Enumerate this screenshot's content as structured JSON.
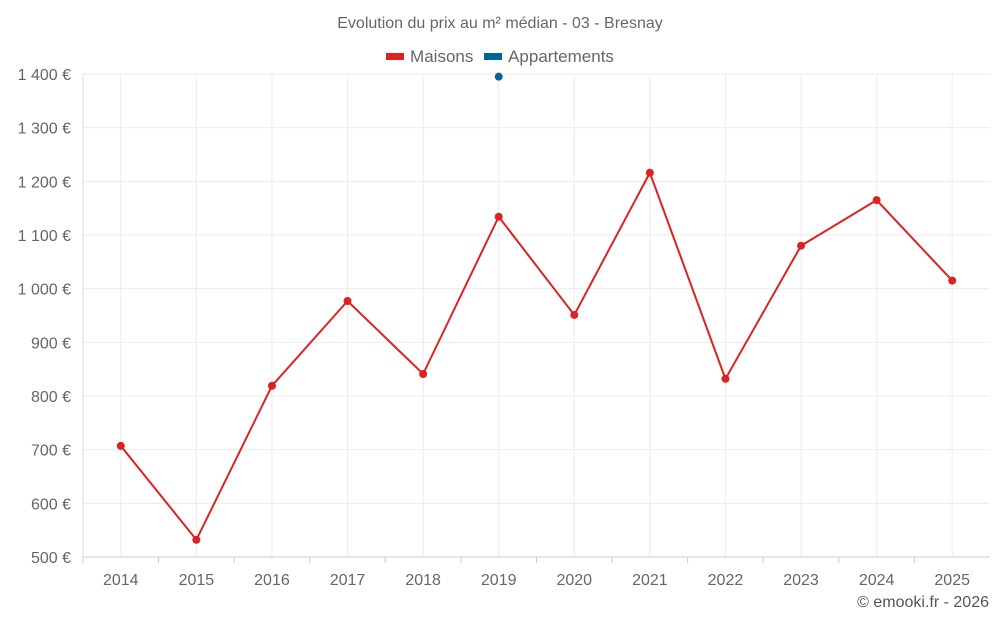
{
  "chart_data": {
    "type": "line",
    "title": "Evolution du prix au m² médian - 03 - Bresnay",
    "categories": [
      "2014",
      "2015",
      "2016",
      "2017",
      "2018",
      "2019",
      "2020",
      "2021",
      "2022",
      "2023",
      "2024",
      "2025"
    ],
    "series": [
      {
        "name": "Maisons",
        "color": "#dd2222",
        "values": [
          707,
          532,
          819,
          977,
          841,
          1134,
          951,
          1216,
          832,
          1080,
          1165,
          1015
        ]
      },
      {
        "name": "Appartements",
        "color": "#006699",
        "values": [
          null,
          null,
          null,
          null,
          null,
          1395,
          null,
          null,
          null,
          null,
          null,
          null
        ]
      }
    ],
    "ylim": [
      500,
      1400
    ],
    "yticks": [
      500,
      600,
      700,
      800,
      900,
      1000,
      1100,
      1200,
      1300,
      1400
    ],
    "ytick_labels": [
      "500 €",
      "600 €",
      "700 €",
      "800 €",
      "900 €",
      "1 000 €",
      "1 100 €",
      "1 200 €",
      "1 300 €",
      "1 400 €"
    ],
    "xlabel": "",
    "ylabel": "",
    "grid": true,
    "legend_position": "top-center"
  },
  "credit": "© emooki.fr - 2026"
}
